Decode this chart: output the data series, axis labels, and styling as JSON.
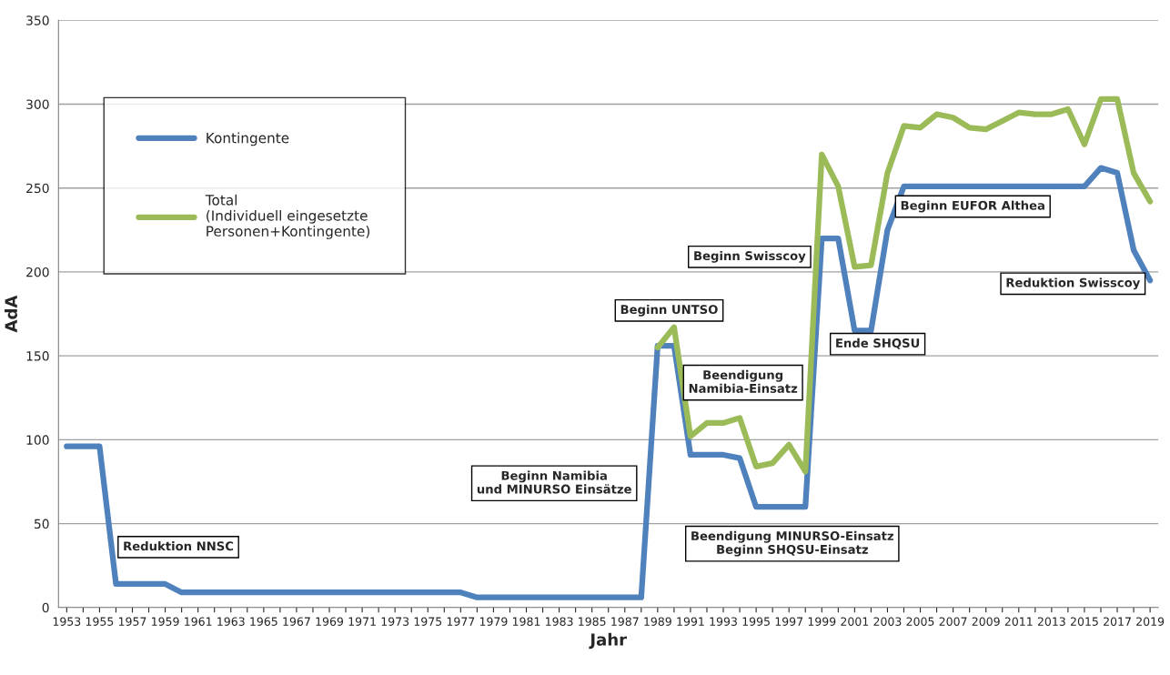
{
  "chart_data": {
    "type": "line",
    "xlabel": "Jahr",
    "ylabel": "AdA",
    "categories": [
      "1953",
      null,
      "1955",
      null,
      "1957",
      null,
      "1959",
      null,
      "1961",
      null,
      "1963",
      null,
      "1965",
      null,
      "1967",
      null,
      "1969",
      null,
      "1971",
      null,
      "1973",
      null,
      "1975",
      null,
      "1977",
      null,
      "1979",
      null,
      "1981",
      null,
      "1983",
      null,
      "1985",
      null,
      "1987",
      null,
      "1989",
      null,
      "1991",
      null,
      "1993",
      null,
      "1995",
      null,
      "1997",
      null,
      "1999",
      null,
      "2001",
      null,
      "2003",
      null,
      "2005",
      null,
      "2007",
      null,
      "2009",
      null,
      "2011",
      null,
      "2013",
      null,
      "2015",
      null,
      "2017",
      null,
      "2019"
    ],
    "series": [
      {
        "name": "Kontingente",
        "color": "#4f81bd",
        "values": [
          96,
          96,
          96,
          14,
          14,
          14,
          14,
          9,
          9,
          9,
          9,
          9,
          9,
          9,
          9,
          9,
          9,
          9,
          9,
          9,
          9,
          9,
          9,
          9,
          9,
          6,
          6,
          6,
          6,
          6,
          6,
          6,
          6,
          6,
          6,
          6,
          156,
          156,
          91,
          91,
          91,
          89,
          60,
          60,
          60,
          60,
          220,
          220,
          165,
          165,
          225,
          251,
          251,
          251,
          251,
          251,
          251,
          251,
          251,
          251,
          251,
          251,
          251,
          262,
          259,
          213,
          195
        ]
      },
      {
        "name": "Total\n(Individuell eingesetzte\nPersonen+Kontingente)",
        "color": "#9bbb59",
        "values": [
          null,
          null,
          null,
          null,
          null,
          null,
          null,
          null,
          null,
          null,
          null,
          null,
          null,
          null,
          null,
          null,
          null,
          null,
          null,
          null,
          null,
          null,
          null,
          null,
          null,
          null,
          null,
          null,
          null,
          null,
          null,
          null,
          null,
          null,
          null,
          null,
          155,
          167,
          102,
          110,
          110,
          113,
          84,
          86,
          97,
          81,
          270,
          251,
          203,
          204,
          259,
          287,
          286,
          294,
          292,
          286,
          285,
          290,
          295,
          294,
          294,
          297,
          276,
          303,
          303,
          259,
          242
        ]
      }
    ],
    "ylim": [
      0,
      350
    ],
    "yticks": [
      0,
      50,
      100,
      150,
      200,
      250,
      300,
      350
    ],
    "grid": "y",
    "legend": "top left",
    "line_style": "solid",
    "marker": "none",
    "annotations": [
      "Reduktion NNSC",
      "Beginn Namibia\nund MINURSO Einsätze",
      "Beginn UNTSO",
      "Beendigung\nNamibia-Einsatz",
      "Beendigung MINURSO-Einsatz\nBeginn SHQSU-Einsatz",
      "Beginn Swisscoy",
      "Ende SHQSU",
      "Beginn EUFOR Althea",
      "Reduktion Swisscoy"
    ]
  }
}
